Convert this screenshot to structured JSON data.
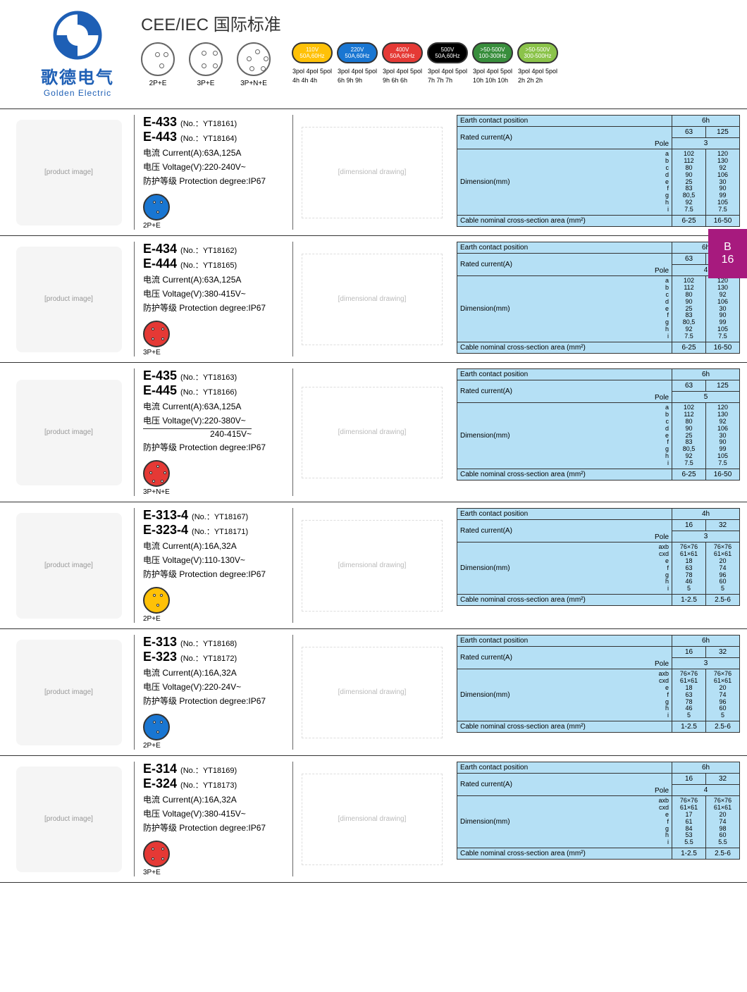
{
  "brand": {
    "cn": "歌德电气",
    "en": "Golden Electric"
  },
  "header_title": "CEE/IEC 国际标准",
  "socket_types": [
    "2P+E",
    "3P+E",
    "3P+N+E"
  ],
  "voltage_badges": [
    {
      "color": "badge-yellow",
      "line1": "110V",
      "line2": "50A,60Hz",
      "spec": "3pol 4pol 5pol\n4h 4h 4h"
    },
    {
      "color": "badge-blue",
      "line1": "220V",
      "line2": "50A,60Hz",
      "spec": "3pol 4pol 5pol\n6h 9h 9h"
    },
    {
      "color": "badge-red",
      "line1": "400V",
      "line2": "50A,60Hz",
      "spec": "3pol 4pol 5pol\n9h 6h 6h"
    },
    {
      "color": "badge-black",
      "line1": "500V",
      "line2": "50A,60Hz",
      "spec": "3pol 4pol 5pol\n7h 7h 7h"
    },
    {
      "color": "badge-green",
      "line1": ">50-500V",
      "line2": "100-300Hz",
      "spec": "3pol 4pol 5pol\n10h 10h 10h"
    },
    {
      "color": "badge-lgreen",
      "line1": ">50-500V",
      "line2": "300-500Hz",
      "spec": "3pol 4pol 5pol\n2h 2h 2h"
    }
  ],
  "page_tab": {
    "letter": "B",
    "num": "16"
  },
  "spec_labels": {
    "earth": "Earth contact position",
    "rated": "Rated current(A)",
    "pole": "Pole",
    "dim": "Dimension(mm)",
    "cable": "Cable nominal cross-section area (mm²)",
    "current": "电流 Current(A):",
    "voltage": "电压 Voltage(V):",
    "protection": "防护等级 Protection degree:",
    "no": "(No.："
  },
  "products": [
    {
      "models": [
        {
          "m": "E-433",
          "no": "YT18161"
        },
        {
          "m": "E-443",
          "no": "YT18164"
        }
      ],
      "current": "63A,125A",
      "voltage": "220-240V~",
      "voltage2": "",
      "protection": "IP67",
      "type_color": "tc-blue",
      "type_label": "2P+E",
      "type_pins": 3,
      "table": {
        "contact": "6h",
        "currents": [
          "63",
          "125"
        ],
        "pole": "3",
        "dim_labels": [
          "a",
          "b",
          "c",
          "d",
          "e",
          "f",
          "g",
          "h",
          "i"
        ],
        "dims1": [
          "102",
          "112",
          "80",
          "90",
          "25",
          "83",
          "80,5",
          "92",
          "7.5"
        ],
        "dims2": [
          "120",
          "130",
          "92",
          "106",
          "30",
          "90",
          "99",
          "105",
          "7.5"
        ],
        "cable": [
          "6-25",
          "16-50"
        ]
      }
    },
    {
      "models": [
        {
          "m": "E-434",
          "no": "YT18162"
        },
        {
          "m": "E-444",
          "no": "YT18165"
        }
      ],
      "current": "63A,125A",
      "voltage": "380-415V~",
      "voltage2": "",
      "protection": "IP67",
      "type_color": "tc-red",
      "type_label": "3P+E",
      "type_pins": 4,
      "table": {
        "contact": "6h",
        "currents": [
          "63",
          "125"
        ],
        "pole": "4",
        "dim_labels": [
          "a",
          "b",
          "c",
          "d",
          "e",
          "f",
          "g",
          "h",
          "i"
        ],
        "dims1": [
          "102",
          "112",
          "80",
          "90",
          "25",
          "83",
          "80,5",
          "92",
          "7.5"
        ],
        "dims2": [
          "120",
          "130",
          "92",
          "106",
          "30",
          "90",
          "99",
          "105",
          "7.5"
        ],
        "cable": [
          "6-25",
          "16-50"
        ]
      }
    },
    {
      "models": [
        {
          "m": "E-435",
          "no": "YT18163"
        },
        {
          "m": "E-445",
          "no": "YT18166"
        }
      ],
      "current": "63A,125A",
      "voltage": "220-380V~",
      "voltage2": "240-415V~",
      "protection": "IP67",
      "type_color": "tc-red",
      "type_label": "3P+N+E",
      "type_pins": 5,
      "table": {
        "contact": "6h",
        "currents": [
          "63",
          "125"
        ],
        "pole": "5",
        "dim_labels": [
          "a",
          "b",
          "c",
          "d",
          "e",
          "f",
          "g",
          "h",
          "i"
        ],
        "dims1": [
          "102",
          "112",
          "80",
          "90",
          "25",
          "83",
          "80,5",
          "92",
          "7.5"
        ],
        "dims2": [
          "120",
          "130",
          "92",
          "106",
          "30",
          "90",
          "99",
          "105",
          "7.5"
        ],
        "cable": [
          "6-25",
          "16-50"
        ]
      }
    },
    {
      "models": [
        {
          "m": "E-313-4",
          "no": "YT18167"
        },
        {
          "m": "E-323-4",
          "no": "YT18171"
        }
      ],
      "current": "16A,32A",
      "voltage": "110-130V~",
      "voltage2": "",
      "protection": "IP67",
      "type_color": "tc-yellow",
      "type_label": "2P+E",
      "type_pins": 3,
      "table": {
        "contact": "4h",
        "currents": [
          "16",
          "32"
        ],
        "pole": "3",
        "dim_labels": [
          "axb",
          "cxd",
          "e",
          "f",
          "g",
          "h",
          "i"
        ],
        "dims1": [
          "76×76",
          "61×61",
          "18",
          "63",
          "78",
          "46",
          "5"
        ],
        "dims2": [
          "76×76",
          "61×61",
          "20",
          "74",
          "96",
          "60",
          "5"
        ],
        "cable": [
          "1-2.5",
          "2.5-6"
        ]
      }
    },
    {
      "models": [
        {
          "m": "E-313",
          "no": "YT18168"
        },
        {
          "m": "E-323",
          "no": "YT18172"
        }
      ],
      "current": "16A,32A",
      "voltage": "220-24V~",
      "voltage2": "",
      "protection": "IP67",
      "type_color": "tc-blue",
      "type_label": "2P+E",
      "type_pins": 3,
      "table": {
        "contact": "6h",
        "currents": [
          "16",
          "32"
        ],
        "pole": "3",
        "dim_labels": [
          "axb",
          "cxd",
          "e",
          "f",
          "g",
          "h",
          "i"
        ],
        "dims1": [
          "76×76",
          "61×61",
          "18",
          "63",
          "78",
          "46",
          "5"
        ],
        "dims2": [
          "76×76",
          "61×61",
          "20",
          "74",
          "96",
          "60",
          "5"
        ],
        "cable": [
          "1-2.5",
          "2.5-6"
        ]
      }
    },
    {
      "models": [
        {
          "m": "E-314",
          "no": "YT18169"
        },
        {
          "m": "E-324",
          "no": "YT18173"
        }
      ],
      "current": "16A,32A",
      "voltage": "380-415V~",
      "voltage2": "",
      "protection": "IP67",
      "type_color": "tc-red",
      "type_label": "3P+E",
      "type_pins": 4,
      "table": {
        "contact": "6h",
        "currents": [
          "16",
          "32"
        ],
        "pole": "4",
        "dim_labels": [
          "axb",
          "cxd",
          "e",
          "f",
          "g",
          "h",
          "i"
        ],
        "dims1": [
          "76×76",
          "61×61",
          "17",
          "61",
          "84",
          "53",
          "5.5"
        ],
        "dims2": [
          "76×76",
          "61×61",
          "20",
          "74",
          "98",
          "60",
          "5.5"
        ],
        "cable": [
          "1-2.5",
          "2.5-6"
        ]
      }
    }
  ]
}
